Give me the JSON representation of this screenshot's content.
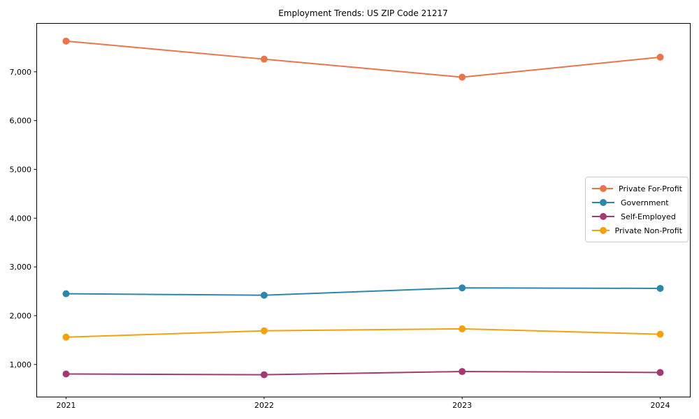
{
  "title": "Employment Trends: US ZIP Code 21217",
  "chart_data": {
    "type": "line",
    "title": "Employment Trends: US ZIP Code 21217",
    "x": [
      2021,
      2022,
      2023,
      2024
    ],
    "x_tick_labels": [
      "2021",
      "2022",
      "2023",
      "2024"
    ],
    "series": [
      {
        "name": "Private For-Profit",
        "color": "#E8764B",
        "values": [
          7630,
          7260,
          6890,
          7300
        ]
      },
      {
        "name": "Government",
        "color": "#2E86AB",
        "values": [
          2450,
          2420,
          2570,
          2560
        ]
      },
      {
        "name": "Self-Employed",
        "color": "#A23B72",
        "values": [
          805,
          790,
          855,
          835
        ]
      },
      {
        "name": "Private Non-Profit",
        "color": "#F5A10B",
        "values": [
          1560,
          1690,
          1730,
          1620
        ]
      }
    ],
    "xlim": [
      2020.85,
      2024.15
    ],
    "ylim": [
      340,
      8000
    ],
    "yticks": [
      1000,
      2000,
      3000,
      4000,
      5000,
      6000,
      7000
    ],
    "ytick_labels": [
      "1,000",
      "2,000",
      "3,000",
      "4,000",
      "5,000",
      "6,000",
      "7,000"
    ],
    "xlabel": "",
    "ylabel": "",
    "grid": false,
    "legend_position": "center-right",
    "marker": "circle",
    "line_width": 2,
    "marker_radius": 5,
    "axis_color": "#000000",
    "background": "#ffffff"
  }
}
